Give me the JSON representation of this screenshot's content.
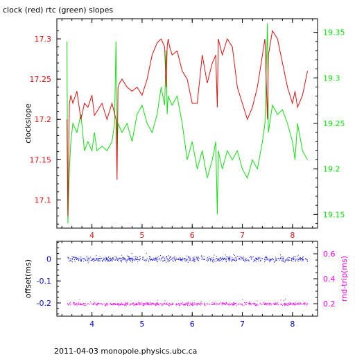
{
  "colors": {
    "red": "#e01010",
    "green": "#10e010",
    "blue": "#0000ee",
    "magenta": "#ee00ee",
    "axis": "#000000"
  },
  "chart_data": [
    {
      "type": "line",
      "title": "clock (red) rtc (green) slopes",
      "ylabel": "clockslope",
      "xlim": [
        3.3,
        8.5
      ],
      "ylim": [
        17.065,
        17.325
      ],
      "y2lim": [
        19.135,
        19.365
      ],
      "x_ticks": [
        "4",
        "5",
        "6",
        "7",
        "8"
      ],
      "y_ticks": [
        "17.1",
        "17.15",
        "17.2",
        "17.25",
        "17.3"
      ],
      "y2_ticks": [
        "19.15",
        "19.2",
        "19.25",
        "19.3",
        "19.35"
      ],
      "grid": false,
      "series": [
        {
          "axis": "left",
          "color_key": "red",
          "x": [
            3.5,
            3.52,
            3.55,
            3.58,
            3.62,
            3.7,
            3.78,
            3.85,
            3.92,
            4.0,
            4.05,
            4.1,
            4.2,
            4.3,
            4.4,
            4.48,
            4.5,
            4.52,
            4.55,
            4.6,
            4.7,
            4.8,
            4.9,
            5.0,
            5.1,
            5.2,
            5.3,
            5.38,
            5.45,
            5.48,
            5.5,
            5.52,
            5.55,
            5.6,
            5.7,
            5.8,
            5.9,
            6.0,
            6.1,
            6.2,
            6.3,
            6.4,
            6.47,
            6.5,
            6.52,
            6.6,
            6.7,
            6.8,
            6.9,
            7.0,
            7.1,
            7.2,
            7.3,
            7.4,
            7.45,
            7.5,
            7.52,
            7.6,
            7.7,
            7.8,
            7.9,
            8.0,
            8.05,
            8.1,
            8.2,
            8.3
          ],
          "y": [
            17.2,
            17.08,
            17.22,
            17.23,
            17.22,
            17.235,
            17.2,
            17.22,
            17.215,
            17.23,
            17.205,
            17.21,
            17.22,
            17.2,
            17.22,
            17.2,
            17.125,
            17.24,
            17.245,
            17.25,
            17.24,
            17.235,
            17.24,
            17.23,
            17.25,
            17.28,
            17.295,
            17.3,
            17.29,
            17.24,
            17.29,
            17.3,
            17.29,
            17.28,
            17.285,
            17.26,
            17.25,
            17.22,
            17.22,
            17.28,
            17.245,
            17.27,
            17.28,
            17.215,
            17.3,
            17.28,
            17.3,
            17.29,
            17.24,
            17.22,
            17.2,
            17.215,
            17.24,
            17.28,
            17.3,
            17.2,
            17.28,
            17.31,
            17.3,
            17.27,
            17.24,
            17.22,
            17.235,
            17.215,
            17.23,
            17.26
          ]
        },
        {
          "axis": "right",
          "color_key": "green",
          "x": [
            3.5,
            3.52,
            3.55,
            3.58,
            3.62,
            3.7,
            3.78,
            3.85,
            3.92,
            4.0,
            4.05,
            4.1,
            4.2,
            4.3,
            4.4,
            4.45,
            4.48,
            4.5,
            4.52,
            4.6,
            4.7,
            4.8,
            4.9,
            5.0,
            5.1,
            5.2,
            5.3,
            5.38,
            5.45,
            5.48,
            5.5,
            5.52,
            5.6,
            5.7,
            5.8,
            5.9,
            6.0,
            6.1,
            6.2,
            6.3,
            6.4,
            6.47,
            6.5,
            6.52,
            6.6,
            6.7,
            6.8,
            6.9,
            7.0,
            7.1,
            7.2,
            7.3,
            7.4,
            7.45,
            7.5,
            7.52,
            7.6,
            7.7,
            7.8,
            7.9,
            8.0,
            8.05,
            8.1,
            8.2,
            8.3
          ],
          "y": [
            19.34,
            19.14,
            19.2,
            19.23,
            19.25,
            19.24,
            19.26,
            19.22,
            19.23,
            19.22,
            19.24,
            19.22,
            19.225,
            19.22,
            19.23,
            19.25,
            19.34,
            19.22,
            19.25,
            19.24,
            19.25,
            19.23,
            19.26,
            19.27,
            19.25,
            19.24,
            19.26,
            19.29,
            19.27,
            19.33,
            19.26,
            19.28,
            19.27,
            19.28,
            19.25,
            19.21,
            19.23,
            19.2,
            19.22,
            19.19,
            19.21,
            19.23,
            19.15,
            19.22,
            19.2,
            19.22,
            19.21,
            19.22,
            19.2,
            19.19,
            19.21,
            19.2,
            19.23,
            19.25,
            19.36,
            19.24,
            19.27,
            19.26,
            19.265,
            19.25,
            19.23,
            19.21,
            19.25,
            19.22,
            19.21
          ]
        }
      ]
    },
    {
      "type": "scatter",
      "xlim": [
        3.3,
        8.5
      ],
      "ylabel": "offset(ms)",
      "y2label": "rnd-trip(ms)",
      "ylim": [
        -0.26,
        0.08
      ],
      "y2lim": [
        0.1,
        0.7
      ],
      "x_ticks": [
        "4",
        "5",
        "6",
        "7",
        "8"
      ],
      "y_ticks": [
        "0",
        "-0.1",
        "-0.2"
      ],
      "y2_ticks": [
        "0.2",
        "0.4",
        "0.6"
      ],
      "series": [
        {
          "axis": "left",
          "color_key": "blue",
          "x_range": [
            3.5,
            8.3
          ],
          "y_center": 0.0,
          "y_spread": 0.012
        },
        {
          "axis": "right",
          "color_key": "magenta",
          "x_range": [
            3.5,
            8.3
          ],
          "y_center": 0.2,
          "y_spread": 0.012
        }
      ]
    }
  ],
  "footer": "2011-04-03 monopole.physics.ubc.ca"
}
